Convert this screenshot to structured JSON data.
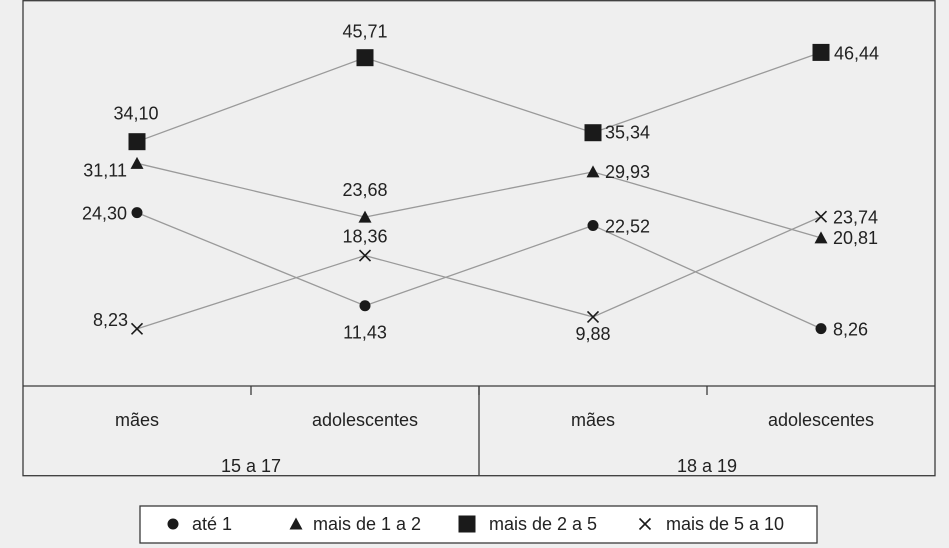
{
  "chart_data": {
    "type": "line",
    "categories": [
      {
        "group": "15 a 17",
        "label": "mães"
      },
      {
        "group": "15 a 17",
        "label": "adolescentes"
      },
      {
        "group": "18 a 19",
        "label": "mães"
      },
      {
        "group": "18 a 19",
        "label": "adolescentes"
      }
    ],
    "groups": [
      "15 a 17",
      "18 a 19"
    ],
    "series": [
      {
        "name": "até 1",
        "marker": "circle",
        "values": [
          24.3,
          11.43,
          22.52,
          8.26
        ],
        "value_labels": [
          "24,30",
          "11,43",
          "22,52",
          "8,26"
        ]
      },
      {
        "name": "mais de 1 a 2",
        "marker": "triangle",
        "values": [
          31.11,
          23.68,
          29.93,
          20.81
        ],
        "value_labels": [
          "31,11",
          "23,68",
          "29,93",
          "20,81"
        ]
      },
      {
        "name": "mais de 2 a 5",
        "marker": "square",
        "values": [
          34.1,
          45.71,
          35.34,
          46.44
        ],
        "value_labels": [
          "34,10",
          "45,71",
          "35,34",
          "46,44"
        ]
      },
      {
        "name": "mais de 5 a 10",
        "marker": "cross",
        "values": [
          8.23,
          18.36,
          9.88,
          23.74
        ],
        "value_labels": [
          "8,23",
          "18,36",
          "9,88",
          "23,74"
        ]
      }
    ],
    "ylim": [
      0,
      50
    ],
    "grid": false,
    "legend_position": "bottom",
    "title": "",
    "xlabel": "",
    "ylabel": ""
  },
  "colors": {
    "background": "#efefef",
    "markers": "#1a1a1a",
    "lines": "#9a9a9a",
    "frame": "#3a3a3a",
    "text": "#222222"
  }
}
